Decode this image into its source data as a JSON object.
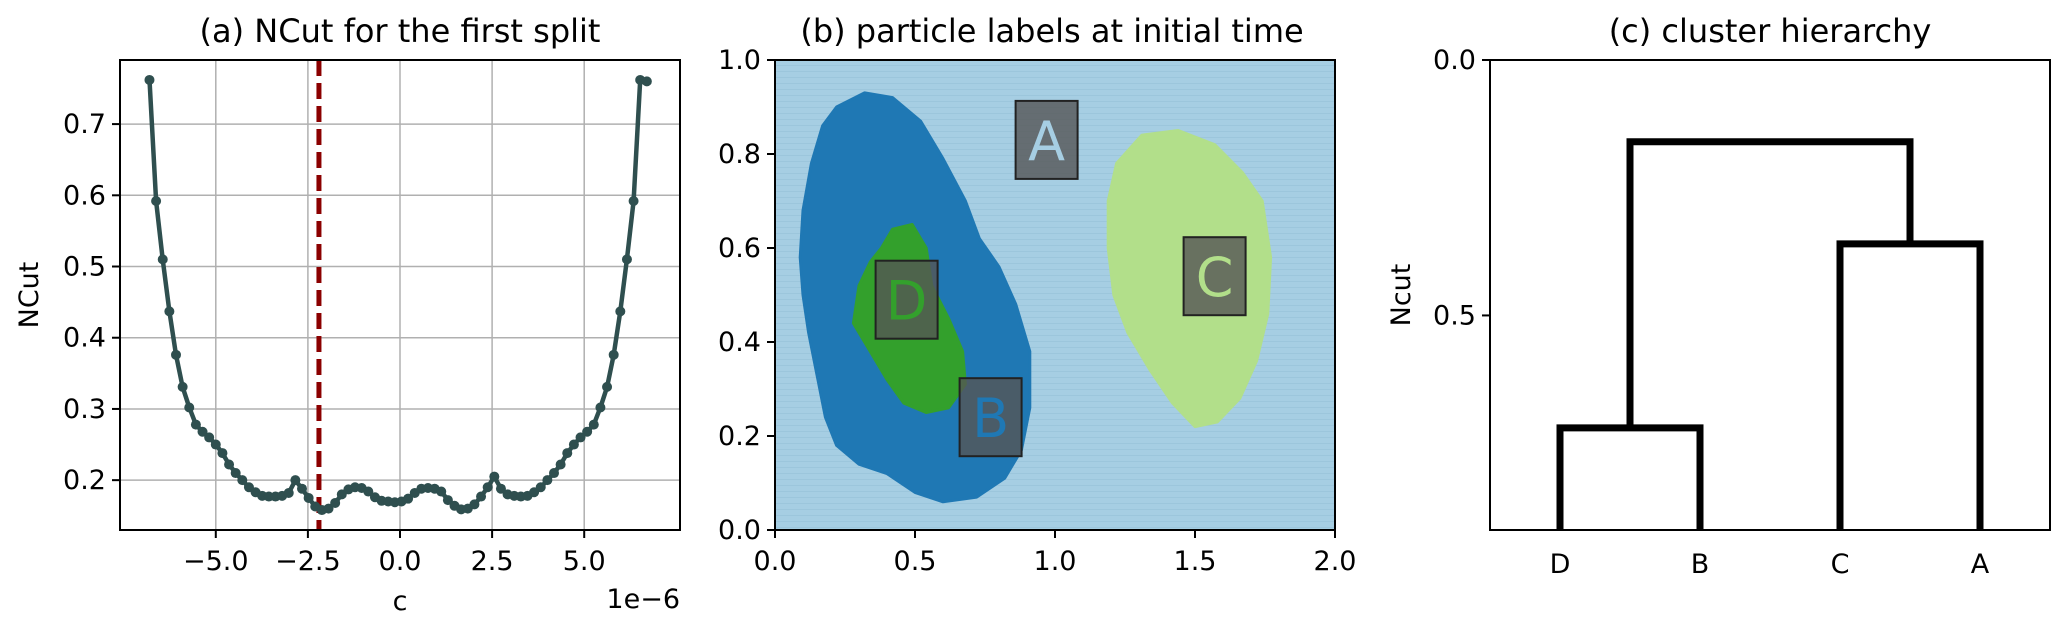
{
  "chart_data": [
    {
      "type": "line",
      "title": "(a) NCut for the first split",
      "xlabel": "c",
      "ylabel": "NCut",
      "x_offset_label": "1e−6",
      "xlim": [
        -7.6e-06,
        7.6e-06
      ],
      "ylim": [
        0.13,
        0.79
      ],
      "xticks": [
        -5e-06,
        -2.5e-06,
        0.0,
        2.5e-06,
        5e-06
      ],
      "xtick_labels": [
        "−5.0",
        "−2.5",
        "0.0",
        "2.5",
        "5.0"
      ],
      "yticks": [
        0.2,
        0.3,
        0.4,
        0.5,
        0.6,
        0.7
      ],
      "ytick_labels": [
        "0.2",
        "0.3",
        "0.4",
        "0.5",
        "0.6",
        "0.7"
      ],
      "grid": true,
      "line_color": "#2f4f4f",
      "vline": {
        "x": -2.2e-06,
        "color": "#8b0000"
      },
      "series": [
        {
          "x": [
            -6.8e-06,
            -6.62e-06,
            -6.44e-06,
            -6.26e-06,
            -6.08e-06,
            -5.9e-06,
            -5.72e-06,
            -5.54e-06,
            -5.36e-06,
            -5.18e-06,
            -5e-06,
            -4.82e-06,
            -4.64e-06,
            -4.46e-06,
            -4.28e-06,
            -4.1e-06,
            -3.92e-06,
            -3.74e-06,
            -3.56e-06,
            -3.38e-06,
            -3.2e-06,
            -3.02e-06,
            -2.84e-06,
            -2.66e-06,
            -2.48e-06,
            -2.3e-06,
            -2.12e-06,
            -1.94e-06,
            -1.76e-06,
            -1.58e-06,
            -1.4e-06,
            -1.22e-06,
            -1.04e-06,
            -8.6e-07,
            -6.8e-07,
            -5e-07,
            -3.2e-07,
            -1.4e-07,
            4e-08,
            2.2e-07,
            4e-07,
            5.8e-07,
            7.6e-07,
            9.4e-07,
            1.12e-06,
            1.3e-06,
            1.48e-06,
            1.66e-06,
            1.84e-06,
            2.02e-06,
            2.2e-06,
            2.38e-06,
            2.56e-06,
            2.74e-06,
            2.92e-06,
            3.1e-06,
            3.28e-06,
            3.46e-06,
            3.64e-06,
            3.82e-06,
            4e-06,
            4.18e-06,
            4.36e-06,
            4.54e-06,
            4.72e-06,
            4.9e-06,
            5.08e-06,
            5.26e-06,
            5.44e-06,
            5.62e-06,
            5.8e-06,
            5.98e-06,
            6.16e-06,
            6.34e-06,
            6.52e-06,
            6.7e-06
          ],
          "y": [
            0.762,
            0.592,
            0.51,
            0.437,
            0.376,
            0.331,
            0.302,
            0.278,
            0.268,
            0.26,
            0.25,
            0.238,
            0.222,
            0.21,
            0.2,
            0.19,
            0.183,
            0.178,
            0.177,
            0.177,
            0.178,
            0.182,
            0.2,
            0.188,
            0.175,
            0.163,
            0.158,
            0.16,
            0.168,
            0.18,
            0.187,
            0.19,
            0.189,
            0.184,
            0.176,
            0.171,
            0.17,
            0.169,
            0.17,
            0.174,
            0.182,
            0.188,
            0.189,
            0.188,
            0.184,
            0.172,
            0.164,
            0.159,
            0.16,
            0.166,
            0.177,
            0.19,
            0.205,
            0.188,
            0.18,
            0.178,
            0.177,
            0.178,
            0.183,
            0.19,
            0.2,
            0.21,
            0.222,
            0.238,
            0.25,
            0.26,
            0.268,
            0.278,
            0.302,
            0.331,
            0.376,
            0.437,
            0.51,
            0.592,
            0.762,
            0.76
          ]
        }
      ]
    },
    {
      "type": "scatter",
      "title": "(b) particle labels at initial time",
      "xlim": [
        0.0,
        2.0
      ],
      "ylim": [
        0.0,
        1.0
      ],
      "xticks": [
        0.0,
        0.5,
        1.0,
        1.5,
        2.0
      ],
      "xtick_labels": [
        "0.0",
        "0.5",
        "1.0",
        "1.5",
        "2.0"
      ],
      "yticks": [
        0.0,
        0.2,
        0.4,
        0.6,
        0.8,
        1.0
      ],
      "ytick_labels": [
        "0.0",
        "0.2",
        "0.4",
        "0.6",
        "0.8",
        "1.0"
      ],
      "background_color": "#a6cee3",
      "clusters": [
        {
          "label": "A",
          "color": "#a6cee3",
          "label_pos": [
            0.97,
            0.83
          ]
        },
        {
          "label": "B",
          "color": "#1f78b4",
          "label_pos": [
            0.77,
            0.24
          ]
        },
        {
          "label": "C",
          "color": "#b2df8a",
          "label_pos": [
            1.57,
            0.54
          ]
        },
        {
          "label": "D",
          "color": "#33a02c",
          "label_pos": [
            0.47,
            0.49
          ]
        }
      ],
      "regions": [
        {
          "cluster": "B",
          "points": [
            [
              0.13,
              0.78
            ],
            [
              0.17,
              0.86
            ],
            [
              0.22,
              0.9
            ],
            [
              0.32,
              0.93
            ],
            [
              0.42,
              0.92
            ],
            [
              0.52,
              0.87
            ],
            [
              0.6,
              0.79
            ],
            [
              0.68,
              0.7
            ],
            [
              0.73,
              0.62
            ],
            [
              0.8,
              0.56
            ],
            [
              0.86,
              0.48
            ],
            [
              0.91,
              0.38
            ],
            [
              0.91,
              0.26
            ],
            [
              0.88,
              0.17
            ],
            [
              0.82,
              0.11
            ],
            [
              0.72,
              0.07
            ],
            [
              0.6,
              0.06
            ],
            [
              0.5,
              0.08
            ],
            [
              0.4,
              0.12
            ],
            [
              0.3,
              0.14
            ],
            [
              0.22,
              0.18
            ],
            [
              0.18,
              0.24
            ],
            [
              0.15,
              0.33
            ],
            [
              0.12,
              0.42
            ],
            [
              0.1,
              0.5
            ],
            [
              0.09,
              0.58
            ],
            [
              0.1,
              0.68
            ]
          ]
        },
        {
          "cluster": "D",
          "points": [
            [
              0.38,
              0.6
            ],
            [
              0.42,
              0.64
            ],
            [
              0.49,
              0.65
            ],
            [
              0.54,
              0.6
            ],
            [
              0.56,
              0.52
            ],
            [
              0.62,
              0.45
            ],
            [
              0.67,
              0.38
            ],
            [
              0.68,
              0.31
            ],
            [
              0.62,
              0.26
            ],
            [
              0.54,
              0.25
            ],
            [
              0.46,
              0.27
            ],
            [
              0.4,
              0.32
            ],
            [
              0.34,
              0.38
            ],
            [
              0.28,
              0.44
            ],
            [
              0.3,
              0.52
            ],
            [
              0.34,
              0.57
            ]
          ]
        },
        {
          "cluster": "C",
          "points": [
            [
              1.22,
              0.78
            ],
            [
              1.31,
              0.84
            ],
            [
              1.44,
              0.85
            ],
            [
              1.57,
              0.82
            ],
            [
              1.67,
              0.76
            ],
            [
              1.74,
              0.7
            ],
            [
              1.77,
              0.58
            ],
            [
              1.76,
              0.46
            ],
            [
              1.72,
              0.36
            ],
            [
              1.66,
              0.28
            ],
            [
              1.58,
              0.23
            ],
            [
              1.5,
              0.22
            ],
            [
              1.42,
              0.27
            ],
            [
              1.34,
              0.34
            ],
            [
              1.26,
              0.42
            ],
            [
              1.21,
              0.5
            ],
            [
              1.19,
              0.6
            ],
            [
              1.19,
              0.7
            ]
          ]
        }
      ]
    },
    {
      "type": "dendrogram",
      "title": "(c) cluster hierarchy",
      "ylabel": "Ncut",
      "ylim": [
        0.0,
        0.92
      ],
      "y_inverted": true,
      "yticks": [
        0.0,
        0.5
      ],
      "ytick_labels": [
        "0.0",
        "0.5"
      ],
      "leaves": [
        "D",
        "B",
        "C",
        "A"
      ],
      "merges": [
        {
          "left": "D",
          "right": "B",
          "height": 0.72
        },
        {
          "left": "C",
          "right": "A",
          "height": 0.36
        },
        {
          "left": "DB",
          "right": "CA",
          "height": 0.16
        }
      ]
    }
  ]
}
